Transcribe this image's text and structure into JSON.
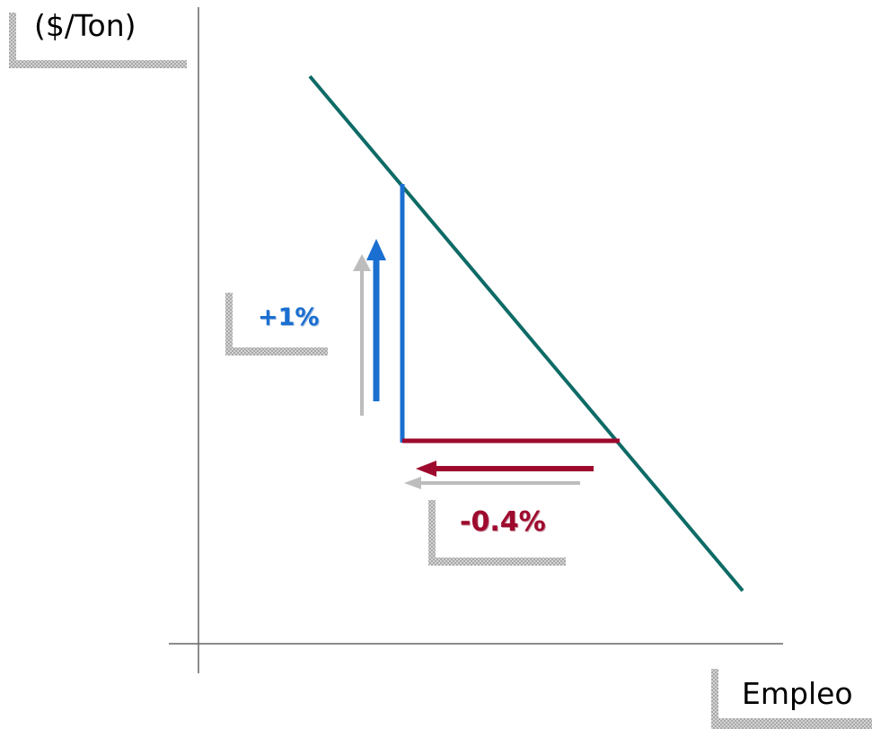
{
  "axes": {
    "y_label": "($/Ton)",
    "x_label": "Empleo"
  },
  "annotations": {
    "price_change": "+1%",
    "employment_change": "-0.4%"
  },
  "colors": {
    "demand_line": "#0e6b66",
    "price_change": "#1a6fd0",
    "employment_change": "#9e0a2e",
    "shadow_arrow": "#bdbdbd",
    "label_frame": "#b8b8b8"
  }
}
